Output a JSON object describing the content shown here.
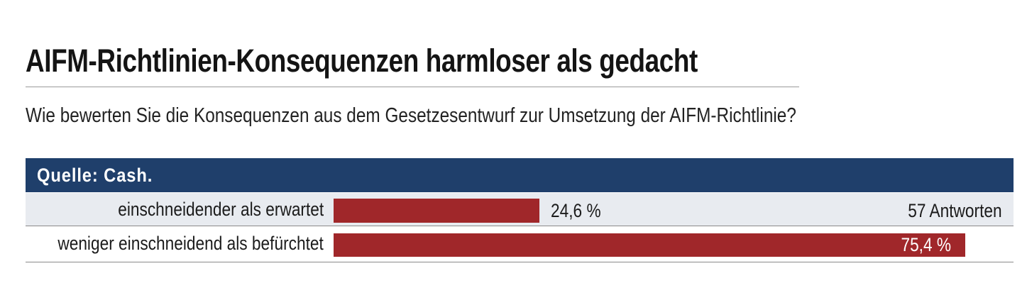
{
  "chart_data": {
    "type": "bar",
    "orientation": "horizontal",
    "title": "AIFM-Richtlinien-Konsequenzen harmloser als gedacht",
    "subtitle": "Wie bewerten Sie die Konsequenzen aus dem Gesetzesentwurf zur Umsetzung der AIFM-Richtlinie?",
    "source": "Quelle: Cash.",
    "categories": [
      "einschneidender als erwartet",
      "weniger einschneidend als befürchtet"
    ],
    "values": [
      24.6,
      75.4
    ],
    "value_labels": [
      "24,6 %",
      "75,4 %"
    ],
    "total_label": "57 Antworten",
    "xlim": [
      0,
      100
    ],
    "grid": false,
    "colors": {
      "bar": "#a0272a",
      "header": "#1f3f6b",
      "row_alt": "#e8ebf0"
    }
  }
}
